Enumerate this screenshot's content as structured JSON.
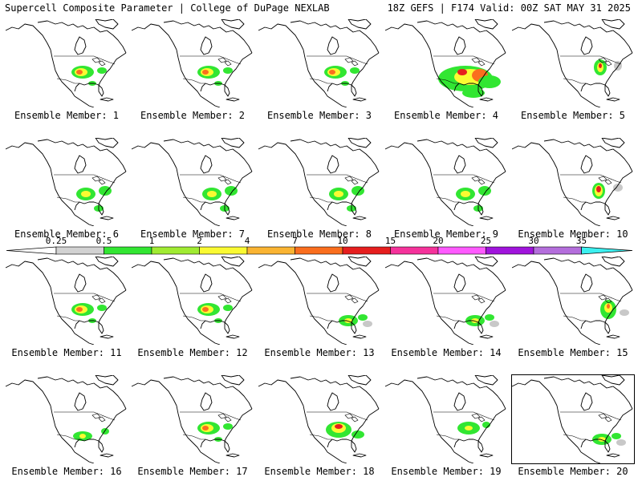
{
  "header": {
    "title": "Supercell Composite Parameter | College of DuPage NEXLAB",
    "run_info": "18Z GEFS | F174 Valid: 00Z SAT MAY 31 2025"
  },
  "member_label_prefix": "Ensemble Member:",
  "members": [
    {
      "id": "1",
      "coverage": "moderate-southern-plains"
    },
    {
      "id": "2",
      "coverage": "moderate-southern-plains"
    },
    {
      "id": "3",
      "coverage": "moderate-southern-plains"
    },
    {
      "id": "4",
      "coverage": "widespread-gulf-and-central-us"
    },
    {
      "id": "5",
      "coverage": "moderate-midwest"
    },
    {
      "id": "6",
      "coverage": "moderate-central-us"
    },
    {
      "id": "7",
      "coverage": "moderate-central-us"
    },
    {
      "id": "8",
      "coverage": "moderate-central-us"
    },
    {
      "id": "9",
      "coverage": "moderate-central-us"
    },
    {
      "id": "10",
      "coverage": "concentrated-mississippi-valley"
    },
    {
      "id": "11",
      "coverage": "moderate-southern-plains"
    },
    {
      "id": "12",
      "coverage": "moderate-southern-plains"
    },
    {
      "id": "13",
      "coverage": "light-southeast"
    },
    {
      "id": "14",
      "coverage": "light-southeast"
    },
    {
      "id": "15",
      "coverage": "moderate-eastern-us"
    },
    {
      "id": "16",
      "coverage": "light-southern-plains"
    },
    {
      "id": "17",
      "coverage": "moderate-southern-plains"
    },
    {
      "id": "18",
      "coverage": "strong-southern-plains"
    },
    {
      "id": "19",
      "coverage": "light-central-us"
    },
    {
      "id": "20",
      "coverage": "light-southeast"
    }
  ],
  "colorbar": {
    "ticks": [
      "0.25",
      "0.5",
      "1",
      "2",
      "4",
      "7",
      "10",
      "15",
      "20",
      "25",
      "30",
      "35"
    ],
    "colors": [
      "#d2d2d2",
      "#32e632",
      "#a0eb32",
      "#fafa32",
      "#fab432",
      "#fa6e1e",
      "#e61e1e",
      "#f5329b",
      "#ff5aff",
      "#a014dc",
      "#b46edc",
      "#3cf0f0"
    ]
  },
  "scp_colors": {
    "light": "#32e632",
    "mid": "#fafa32",
    "high": "#fa6e1e",
    "extreme": "#e61e1e",
    "trace": "#c8c8c8"
  }
}
